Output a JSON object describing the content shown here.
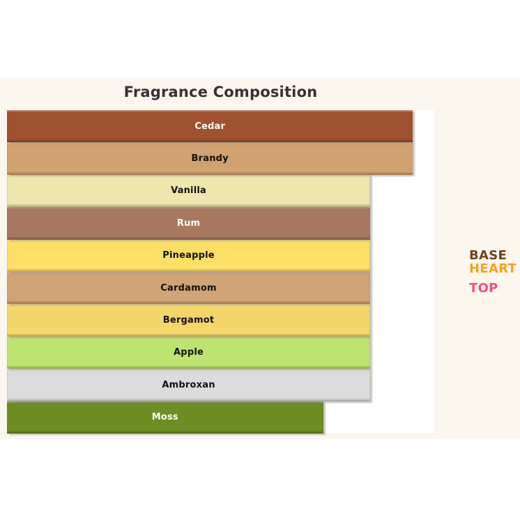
{
  "colors": {
    "page_bg": "#FFFFFF",
    "figure_bg": "#FBF6EE",
    "plot_bg": "#FFFFFF",
    "title": "#3A3132"
  },
  "chart_data": {
    "type": "bar",
    "orientation": "horizontal",
    "title": "Fragrance Composition",
    "xlabel": "",
    "ylabel": "",
    "xlim": [
      0,
      100
    ],
    "grid": false,
    "categories": [
      "Cedar",
      "Brandy",
      "Vanilla",
      "Rum",
      "Pineapple",
      "Cardamom",
      "Bergamot",
      "Apple",
      "Ambroxan",
      "Moss"
    ],
    "values": [
      95,
      95,
      85,
      85,
      85,
      85,
      85,
      85,
      85,
      74
    ],
    "bar_colors": [
      "#9F5130",
      "#D1A170",
      "#EFE6AD",
      "#A87861",
      "#FCDF66",
      "#D0A476",
      "#F3D76B",
      "#BDE370",
      "#DCDCDC",
      "#6C8E23"
    ],
    "label_colors": [
      "#FFFFFF",
      "#111111",
      "#111111",
      "#FFFFFF",
      "#111111",
      "#111111",
      "#111111",
      "#111111",
      "#111111",
      "#FFFFFF"
    ],
    "legend": {
      "position": "right",
      "items": [
        {
          "label": "BASE",
          "color": "#6B4423"
        },
        {
          "label": "HEART",
          "color": "#F6A21C"
        },
        {
          "label": "TOP",
          "color": "#FA4C7D"
        }
      ]
    }
  }
}
